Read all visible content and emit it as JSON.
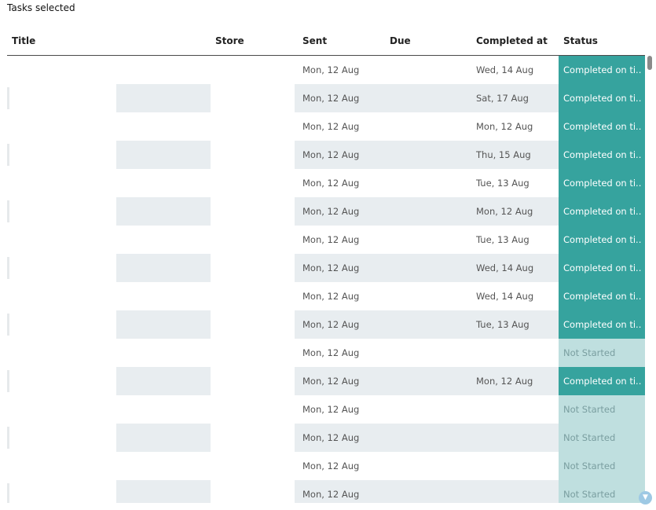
{
  "page": {
    "title": "Tasks selected"
  },
  "table": {
    "columns": [
      "Title",
      "Store",
      "Sent",
      "Due",
      "Completed at",
      "Status"
    ],
    "rows": [
      {
        "sent": "Mon, 12 Aug",
        "due": "",
        "completed": "Wed, 14 Aug",
        "status": "Completed on ti.."
      },
      {
        "sent": "Mon, 12 Aug",
        "due": "",
        "completed": "Sat, 17 Aug",
        "status": "Completed on ti.."
      },
      {
        "sent": "Mon, 12 Aug",
        "due": "",
        "completed": "Mon, 12 Aug",
        "status": "Completed on ti.."
      },
      {
        "sent": "Mon, 12 Aug",
        "due": "",
        "completed": "Thu, 15 Aug",
        "status": "Completed on ti.."
      },
      {
        "sent": "Mon, 12 Aug",
        "due": "",
        "completed": "Tue, 13 Aug",
        "status": "Completed on ti.."
      },
      {
        "sent": "Mon, 12 Aug",
        "due": "",
        "completed": "Mon, 12 Aug",
        "status": "Completed on ti.."
      },
      {
        "sent": "Mon, 12 Aug",
        "due": "",
        "completed": "Tue, 13 Aug",
        "status": "Completed on ti.."
      },
      {
        "sent": "Mon, 12 Aug",
        "due": "",
        "completed": "Wed, 14 Aug",
        "status": "Completed on ti.."
      },
      {
        "sent": "Mon, 12 Aug",
        "due": "",
        "completed": "Wed, 14 Aug",
        "status": "Completed on ti.."
      },
      {
        "sent": "Mon, 12 Aug",
        "due": "",
        "completed": "Tue, 13 Aug",
        "status": "Completed on ti.."
      },
      {
        "sent": "Mon, 12 Aug",
        "due": "",
        "completed": "",
        "status": "Not Started"
      },
      {
        "sent": "Mon, 12 Aug",
        "due": "",
        "completed": "Mon, 12 Aug",
        "status": "Completed on ti.."
      },
      {
        "sent": "Mon, 12 Aug",
        "due": "",
        "completed": "",
        "status": "Not Started"
      },
      {
        "sent": "Mon, 12 Aug",
        "due": "",
        "completed": "",
        "status": "Not Started"
      },
      {
        "sent": "Mon, 12 Aug",
        "due": "",
        "completed": "",
        "status": "Not Started"
      },
      {
        "sent": "Mon, 12 Aug",
        "due": "",
        "completed": "",
        "status": "Not Started"
      }
    ]
  },
  "icons": {
    "scroll_down": "chevron-down-icon"
  },
  "colors": {
    "status_completed": "#36a39e",
    "status_not_started": "#bfdfdf",
    "row_alt": "#e8edf0"
  }
}
